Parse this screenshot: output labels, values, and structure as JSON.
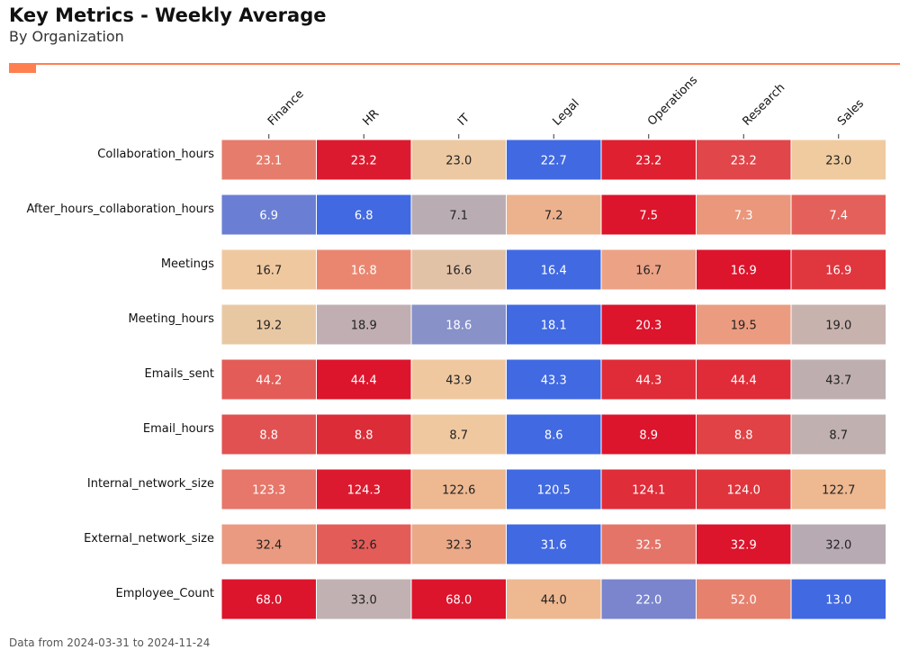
{
  "header": {
    "title": "Key Metrics - Weekly Average",
    "subtitle": "By Organization",
    "accent_color": "#FF7F50"
  },
  "footer": {
    "note": "Data from 2024-03-31 to 2024-11-24"
  },
  "colors": {
    "palette_low": "#4169E1",
    "palette_mid": "#F0C8A0",
    "palette_high": "#DC142C",
    "text_light": "#FFFFFF",
    "text_dark": "#222222"
  },
  "chart_data": {
    "type": "heatmap",
    "title": "Key Metrics - Weekly Average",
    "subtitle": "By Organization",
    "colormap": "coolwarm (per-row scaling)",
    "columns": [
      "Finance",
      "HR",
      "IT",
      "Legal",
      "Operations",
      "Research",
      "Sales"
    ],
    "rows": [
      "Collaboration_hours",
      "After_hours_collaboration_hours",
      "Meetings",
      "Meeting_hours",
      "Emails_sent",
      "Email_hours",
      "Internal_network_size",
      "External_network_size",
      "Employee_Count"
    ],
    "values": [
      [
        23.1,
        23.2,
        23.0,
        22.7,
        23.2,
        23.2,
        23.0
      ],
      [
        6.9,
        6.8,
        7.1,
        7.2,
        7.5,
        7.3,
        7.4
      ],
      [
        16.7,
        16.8,
        16.6,
        16.4,
        16.7,
        16.9,
        16.9
      ],
      [
        19.2,
        18.9,
        18.6,
        18.1,
        20.3,
        19.5,
        19.0
      ],
      [
        44.2,
        44.4,
        43.9,
        43.3,
        44.3,
        44.4,
        43.7
      ],
      [
        8.8,
        8.8,
        8.7,
        8.6,
        8.9,
        8.8,
        8.7
      ],
      [
        123.3,
        124.3,
        122.6,
        120.5,
        124.1,
        124.0,
        122.7
      ],
      [
        32.4,
        32.6,
        32.3,
        31.6,
        32.5,
        32.9,
        32.0
      ],
      [
        68.0,
        33.0,
        68.0,
        44.0,
        22.0,
        52.0,
        13.0
      ]
    ],
    "cell_colors": [
      [
        "#E67D6C",
        "#DC1A2F",
        "#ECC9A3",
        "#4169E1",
        "#DE2030",
        "#E0464A",
        "#EFCB9F"
      ],
      [
        "#6A7FD3",
        "#4169E1",
        "#B9ADB3",
        "#ECB28E",
        "#DC142C",
        "#EA977C",
        "#E3615A"
      ],
      [
        "#F0C8A0",
        "#EA8670",
        "#E2C2A7",
        "#4169E1",
        "#ECA285",
        "#DC142C",
        "#E0363E"
      ],
      [
        "#E8C8A3",
        "#C0AEB3",
        "#8891C8",
        "#4169E1",
        "#DC142C",
        "#EB9C80",
        "#C7B2AE"
      ],
      [
        "#E35C58",
        "#DC142C",
        "#F0C8A0",
        "#4169E1",
        "#DF2C38",
        "#DF2C38",
        "#BEAEB0"
      ],
      [
        "#E15151",
        "#DC2C38",
        "#F0C8A0",
        "#4169E1",
        "#DC142C",
        "#E04245",
        "#C0B0B0"
      ],
      [
        "#E6776A",
        "#DC1A2F",
        "#EEB891",
        "#4169E1",
        "#DF2D39",
        "#E0343D",
        "#EEB890"
      ],
      [
        "#EA9A80",
        "#E35C58",
        "#EBA988",
        "#4169E1",
        "#E57468",
        "#DC142C",
        "#B8AAB3"
      ],
      [
        "#DC142C",
        "#C2B1B2",
        "#DC142C",
        "#EEB891",
        "#7B85CD",
        "#E6816E",
        "#4169E1"
      ]
    ],
    "text_light": [
      [
        true,
        true,
        false,
        true,
        true,
        true,
        false
      ],
      [
        true,
        true,
        false,
        false,
        true,
        true,
        true
      ],
      [
        false,
        true,
        false,
        true,
        false,
        true,
        true
      ],
      [
        false,
        false,
        true,
        true,
        true,
        false,
        false
      ],
      [
        true,
        true,
        false,
        true,
        true,
        true,
        false
      ],
      [
        true,
        true,
        false,
        true,
        true,
        true,
        false
      ],
      [
        true,
        true,
        false,
        true,
        true,
        true,
        false
      ],
      [
        false,
        false,
        false,
        true,
        true,
        true,
        false
      ],
      [
        true,
        false,
        true,
        false,
        true,
        true,
        true
      ]
    ],
    "legend": "none"
  }
}
